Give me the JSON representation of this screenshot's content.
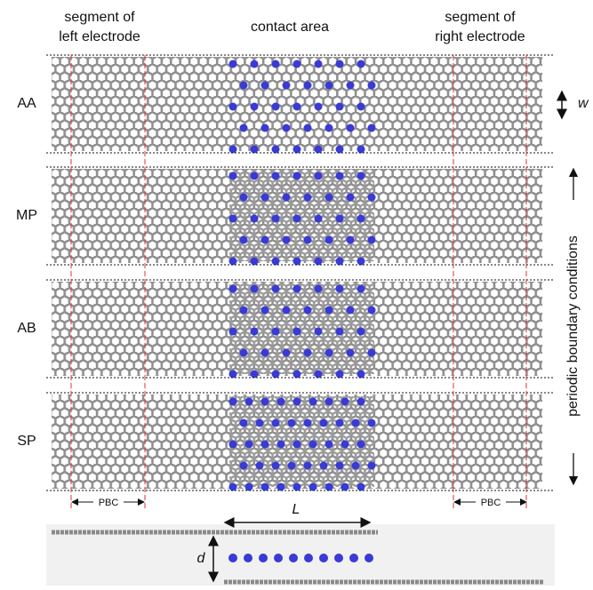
{
  "header": {
    "left": [
      "segment of",
      "left electrode"
    ],
    "center": "contact area",
    "right": [
      "segment of",
      "right electrode"
    ]
  },
  "rows": [
    {
      "label": "AA"
    },
    {
      "label": "MP"
    },
    {
      "label": "AB"
    },
    {
      "label": "SP"
    }
  ],
  "width_label": "w",
  "side_label": "periodic boundary conditions",
  "pbc_labels": [
    "PBC",
    "PBC"
  ],
  "side_view": {
    "length_label": "L",
    "distance_label": "d"
  }
}
